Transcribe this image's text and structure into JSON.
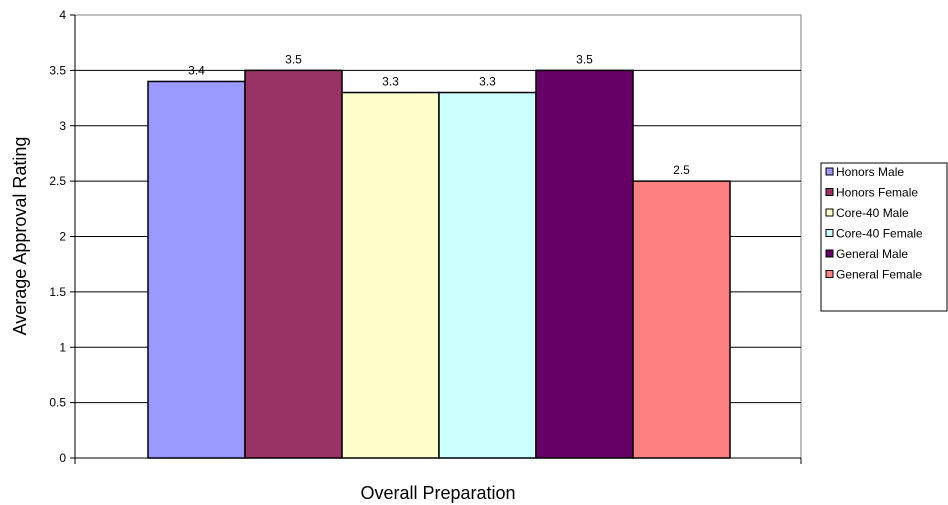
{
  "chart_data": {
    "type": "bar",
    "title": "",
    "xlabel": "Overall Preparation",
    "ylabel": "Average Approval Rating",
    "categories": [
      "Overall Preparation"
    ],
    "series": [
      {
        "name": "Honors Male",
        "values": [
          3.4
        ],
        "color": "#9999ff"
      },
      {
        "name": "Honors Female",
        "values": [
          3.5
        ],
        "color": "#993366"
      },
      {
        "name": "Core-40 Male",
        "values": [
          3.3
        ],
        "color": "#ffffcc"
      },
      {
        "name": "Core-40 Female",
        "values": [
          3.3
        ],
        "color": "#ccffff"
      },
      {
        "name": "General Male",
        "values": [
          3.5
        ],
        "color": "#660066"
      },
      {
        "name": "General Female",
        "values": [
          2.5
        ],
        "color": "#ff8080"
      }
    ],
    "ylim": [
      0,
      4
    ],
    "y_ticks": [
      "0",
      "0.5",
      "1",
      "1.5",
      "2",
      "2.5",
      "3",
      "3.5",
      "4"
    ],
    "grid": true,
    "legend_position": "right",
    "data_labels": [
      "3.4",
      "3.5",
      "3.3",
      "3.3",
      "3.5",
      "2.5"
    ]
  }
}
